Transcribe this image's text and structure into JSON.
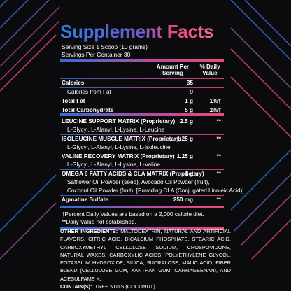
{
  "title": "Supplement Facts",
  "serving_size": "Serving Size 1 Scoop (10 grams)",
  "servings_per_container": "Servings Per Container 30",
  "header": {
    "amount": "Amount Per Serving",
    "dv": "% Daily Value"
  },
  "nutrients": [
    {
      "name": "Calories",
      "amount": "35",
      "sub": {
        "name": "Calories from Fat",
        "amount": "9"
      }
    },
    {
      "name": "Total Fat",
      "amount": "1 g",
      "dv": "1%†"
    },
    {
      "name": "Total Carbohydrate",
      "amount": "5 g",
      "dv": "2%†"
    }
  ],
  "blends": [
    {
      "name": "LEUCINE SUPPORT MATRIX (Proprietary)",
      "amount": "2.5 g",
      "dv": "**",
      "detail": [
        "L-Glycyl, L-Alanyl, L-Lysine, L-Leucine"
      ]
    },
    {
      "name": "ISOLEUCINE MUSCLE MATRIX (Proprietary)",
      "amount": "1.25 g",
      "dv": "**",
      "detail": [
        "L-Glycyl, L-Alanyl, L-Lysine, L-Isoleucine"
      ]
    },
    {
      "name": "VALINE RECOVERY MATRIX (Proprietary)",
      "amount": "1.25 g",
      "dv": "**",
      "detail": [
        "L-Glycyl, L-Alanyl, L-Lysine, L-Valine"
      ]
    },
    {
      "name": "OMEGA 6 FATTY ACIDS & CLA MATRIX (Proprietary)",
      "amount": "1 g",
      "dv": "**",
      "detail": [
        "Safflower Oil Powder (seed), Avocado Oil Powder (fruit),",
        "Coconut Oil Powder (fruit), [Providing CLA (Conjugated Linoleic Acid)]"
      ]
    },
    {
      "name": "Agmatine Sulfate",
      "amount": "250 mg",
      "dv": "**"
    }
  ],
  "footnotes": [
    "†Percent Daily Values are based on a 2,000 calorie diet.",
    "**Daily Value not established."
  ],
  "other_ingredients": {
    "label": "OTHER INGREDIENTS:",
    "text": "MALTODEXTRIN, NATURAL AND ARTIFICIAL FLAVORS, CITRIC ACID, DICALCIUM PHOSPHATE, STEARIC ACID, CARBOXYMETHYL CELLULOSE SODIUM, CROSPOVIDONE, NATURAL WAXES, CARBOXYLIC ACIDS, POLYETHYLENE GLYCOL, POTASSIUM HYDROXIDE, SILICA, SUCRALOSE, MALIC ACID, FIBER BLEND (CELLULOSE GUM, XANTHAN GUM, CARRAGEENAN), AND ACESULFAME K."
  },
  "contains": {
    "label": "CONTAIN(S):",
    "text": "TREE NUTS (COCONUT)."
  }
}
